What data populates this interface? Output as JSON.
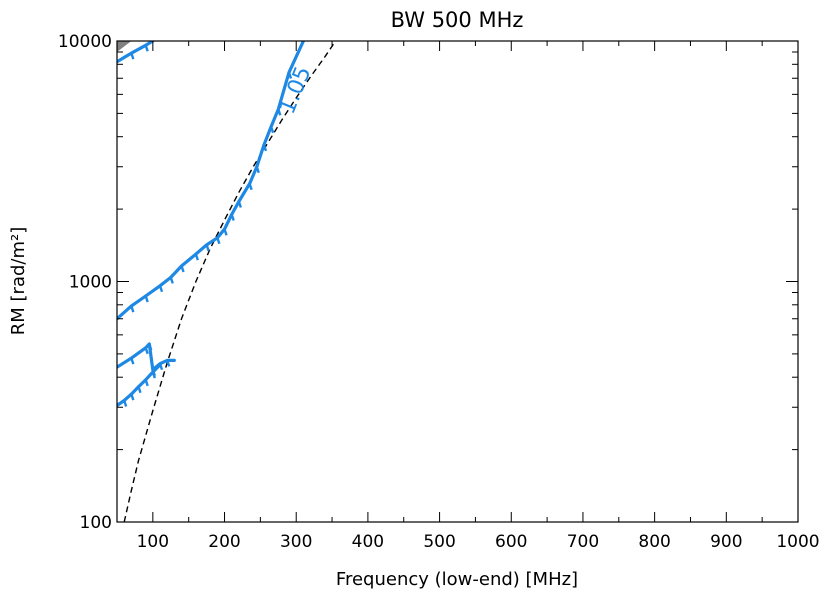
{
  "chart_data": {
    "type": "line",
    "title": "BW 500 MHz",
    "xlabel": "Frequency (low-end) [MHz]",
    "ylabel": "RM [rad/m²]",
    "xscale": "linear",
    "yscale": "log",
    "xlim": [
      50,
      1000
    ],
    "ylim": [
      100,
      10000
    ],
    "xticks": [
      100,
      200,
      300,
      400,
      500,
      600,
      700,
      800,
      900,
      1000
    ],
    "xtick_labels": [
      "100",
      "200",
      "300",
      "400",
      "500",
      "600",
      "700",
      "800",
      "900",
      "1000"
    ],
    "yticks": [
      100,
      1000,
      10000
    ],
    "ytick_labels": [
      "100",
      "1000",
      "10000"
    ],
    "contour_label": "1.05",
    "colors": {
      "contour": "#1e88e5",
      "shade": "#808080",
      "dashed": "#000000"
    },
    "series": [
      {
        "name": "dashed-boundary",
        "style": "dashed",
        "points": [
          [
            60,
            100
          ],
          [
            70,
            135
          ],
          [
            80,
            180
          ],
          [
            100,
            290
          ],
          [
            120,
            460
          ],
          [
            140,
            700
          ],
          [
            160,
            1000
          ],
          [
            180,
            1370
          ],
          [
            200,
            1800
          ],
          [
            220,
            2350
          ],
          [
            240,
            3000
          ],
          [
            260,
            3750
          ],
          [
            280,
            4700
          ],
          [
            300,
            5800
          ],
          [
            320,
            7100
          ],
          [
            340,
            8600
          ],
          [
            355,
            10000
          ]
        ]
      },
      {
        "name": "contour-upper-left",
        "style": "contour",
        "points": [
          [
            50,
            8200
          ],
          [
            70,
            8900
          ],
          [
            90,
            9600
          ],
          [
            100,
            10000
          ]
        ]
      },
      {
        "name": "contour-1.05-main",
        "style": "contour",
        "points": [
          [
            50,
            700
          ],
          [
            70,
            790
          ],
          [
            90,
            870
          ],
          [
            110,
            960
          ],
          [
            125,
            1040
          ],
          [
            140,
            1160
          ],
          [
            160,
            1300
          ],
          [
            175,
            1420
          ],
          [
            190,
            1520
          ],
          [
            200,
            1650
          ],
          [
            210,
            1900
          ],
          [
            220,
            2150
          ],
          [
            235,
            2550
          ],
          [
            245,
            3000
          ],
          [
            255,
            3700
          ],
          [
            265,
            4400
          ],
          [
            275,
            5200
          ],
          [
            290,
            7400
          ],
          [
            310,
            10000
          ]
        ]
      },
      {
        "name": "contour-lower-a",
        "style": "contour",
        "points": [
          [
            50,
            440
          ],
          [
            70,
            480
          ],
          [
            90,
            530
          ],
          [
            95,
            550
          ],
          [
            100,
            430
          ],
          [
            110,
            455
          ],
          [
            120,
            470
          ],
          [
            130,
            470
          ]
        ]
      },
      {
        "name": "contour-lower-b",
        "style": "contour",
        "points": [
          [
            50,
            305
          ],
          [
            60,
            320
          ],
          [
            70,
            340
          ],
          [
            80,
            365
          ],
          [
            90,
            390
          ],
          [
            100,
            420
          ],
          [
            110,
            450
          ]
        ]
      }
    ],
    "shaded_region": [
      [
        50,
        10000
      ],
      [
        50,
        9000
      ],
      [
        70,
        10000
      ]
    ]
  }
}
